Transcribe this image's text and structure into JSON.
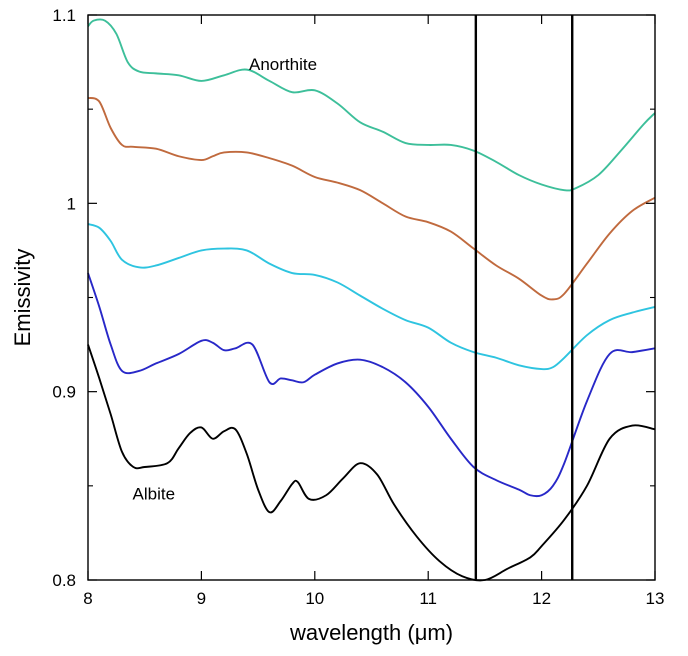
{
  "chart_data": {
    "type": "line",
    "xlabel": "wavelength (μm)",
    "ylabel": "Emissivity",
    "xlim": [
      8,
      13
    ],
    "ylim": [
      0.8,
      1.1
    ],
    "x_ticks": [
      8,
      9,
      10,
      11,
      12,
      13
    ],
    "x_tick_labels": [
      "8",
      "9",
      "10",
      "11",
      "12",
      "13"
    ],
    "y_ticks": [
      0.8,
      0.9,
      1.0,
      1.1
    ],
    "y_tick_labels": [
      "0.8",
      "0.9",
      "1",
      "1.1"
    ],
    "y_minor_ticks": [
      0.85,
      0.95,
      1.05
    ],
    "grid": false,
    "vertical_lines": [
      11.42,
      12.27
    ],
    "annotations": [
      {
        "text": "Anorthite",
        "x": 9.72,
        "y": 1.074
      },
      {
        "text": "Albite",
        "x": 8.58,
        "y": 0.846
      }
    ],
    "series": [
      {
        "color": "#3dbf9a",
        "x": [
          8.0,
          8.05,
          8.15,
          8.25,
          8.35,
          8.45,
          8.6,
          8.8,
          9.0,
          9.2,
          9.4,
          9.6,
          9.8,
          10.0,
          10.2,
          10.4,
          10.6,
          10.8,
          11.0,
          11.2,
          11.4,
          11.6,
          11.8,
          12.0,
          12.2,
          12.3,
          12.5,
          12.7,
          12.9,
          13.0
        ],
        "y": [
          1.094,
          1.097,
          1.097,
          1.09,
          1.075,
          1.07,
          1.069,
          1.068,
          1.065,
          1.068,
          1.071,
          1.065,
          1.059,
          1.06,
          1.053,
          1.043,
          1.038,
          1.032,
          1.031,
          1.031,
          1.028,
          1.022,
          1.015,
          1.01,
          1.007,
          1.008,
          1.015,
          1.028,
          1.042,
          1.048
        ]
      },
      {
        "color": "#c06a3e",
        "x": [
          8.0,
          8.1,
          8.2,
          8.3,
          8.4,
          8.6,
          8.8,
          9.0,
          9.1,
          9.2,
          9.4,
          9.6,
          9.8,
          10.0,
          10.2,
          10.4,
          10.6,
          10.8,
          11.0,
          11.2,
          11.4,
          11.6,
          11.8,
          12.0,
          12.1,
          12.2,
          12.4,
          12.6,
          12.8,
          13.0
        ],
        "y": [
          1.056,
          1.054,
          1.04,
          1.031,
          1.03,
          1.029,
          1.025,
          1.023,
          1.025,
          1.027,
          1.027,
          1.024,
          1.02,
          1.014,
          1.011,
          1.007,
          1.0,
          0.993,
          0.99,
          0.985,
          0.976,
          0.967,
          0.96,
          0.951,
          0.949,
          0.952,
          0.968,
          0.984,
          0.996,
          1.003
        ]
      },
      {
        "color": "#2ec4e0",
        "x": [
          8.0,
          8.1,
          8.2,
          8.3,
          8.45,
          8.6,
          8.8,
          9.0,
          9.2,
          9.4,
          9.6,
          9.8,
          10.0,
          10.2,
          10.4,
          10.6,
          10.8,
          11.0,
          11.2,
          11.4,
          11.6,
          11.8,
          12.0,
          12.1,
          12.2,
          12.4,
          12.6,
          12.8,
          13.0
        ],
        "y": [
          0.989,
          0.987,
          0.98,
          0.97,
          0.966,
          0.967,
          0.971,
          0.975,
          0.976,
          0.975,
          0.968,
          0.963,
          0.962,
          0.958,
          0.951,
          0.944,
          0.938,
          0.934,
          0.926,
          0.921,
          0.918,
          0.914,
          0.912,
          0.913,
          0.918,
          0.93,
          0.938,
          0.942,
          0.945
        ]
      },
      {
        "color": "#2828c8",
        "x": [
          8.0,
          8.1,
          8.2,
          8.3,
          8.45,
          8.6,
          8.8,
          9.0,
          9.1,
          9.2,
          9.3,
          9.45,
          9.6,
          9.7,
          9.8,
          9.9,
          10.0,
          10.2,
          10.4,
          10.6,
          10.8,
          11.0,
          11.2,
          11.4,
          11.6,
          11.8,
          11.9,
          12.0,
          12.1,
          12.2,
          12.4,
          12.6,
          12.8,
          13.0
        ],
        "y": [
          0.963,
          0.945,
          0.925,
          0.911,
          0.911,
          0.915,
          0.92,
          0.927,
          0.926,
          0.922,
          0.923,
          0.925,
          0.905,
          0.907,
          0.906,
          0.905,
          0.909,
          0.915,
          0.917,
          0.913,
          0.905,
          0.892,
          0.875,
          0.86,
          0.853,
          0.848,
          0.845,
          0.845,
          0.85,
          0.862,
          0.895,
          0.92,
          0.921,
          0.923
        ]
      },
      {
        "color": "#000000",
        "x": [
          8.0,
          8.1,
          8.2,
          8.3,
          8.4,
          8.5,
          8.7,
          8.8,
          8.9,
          9.0,
          9.1,
          9.2,
          9.3,
          9.4,
          9.5,
          9.6,
          9.7,
          9.8,
          9.85,
          9.95,
          10.1,
          10.25,
          10.4,
          10.55,
          10.7,
          10.9,
          11.1,
          11.3,
          11.5,
          11.7,
          11.9,
          12.0,
          12.2,
          12.4,
          12.6,
          12.8,
          13.0
        ],
        "y": [
          0.925,
          0.907,
          0.888,
          0.868,
          0.86,
          0.86,
          0.862,
          0.87,
          0.878,
          0.881,
          0.875,
          0.879,
          0.88,
          0.867,
          0.848,
          0.836,
          0.842,
          0.851,
          0.852,
          0.843,
          0.845,
          0.854,
          0.862,
          0.856,
          0.84,
          0.823,
          0.81,
          0.802,
          0.8,
          0.806,
          0.812,
          0.818,
          0.832,
          0.85,
          0.875,
          0.882,
          0.88
        ]
      }
    ]
  }
}
